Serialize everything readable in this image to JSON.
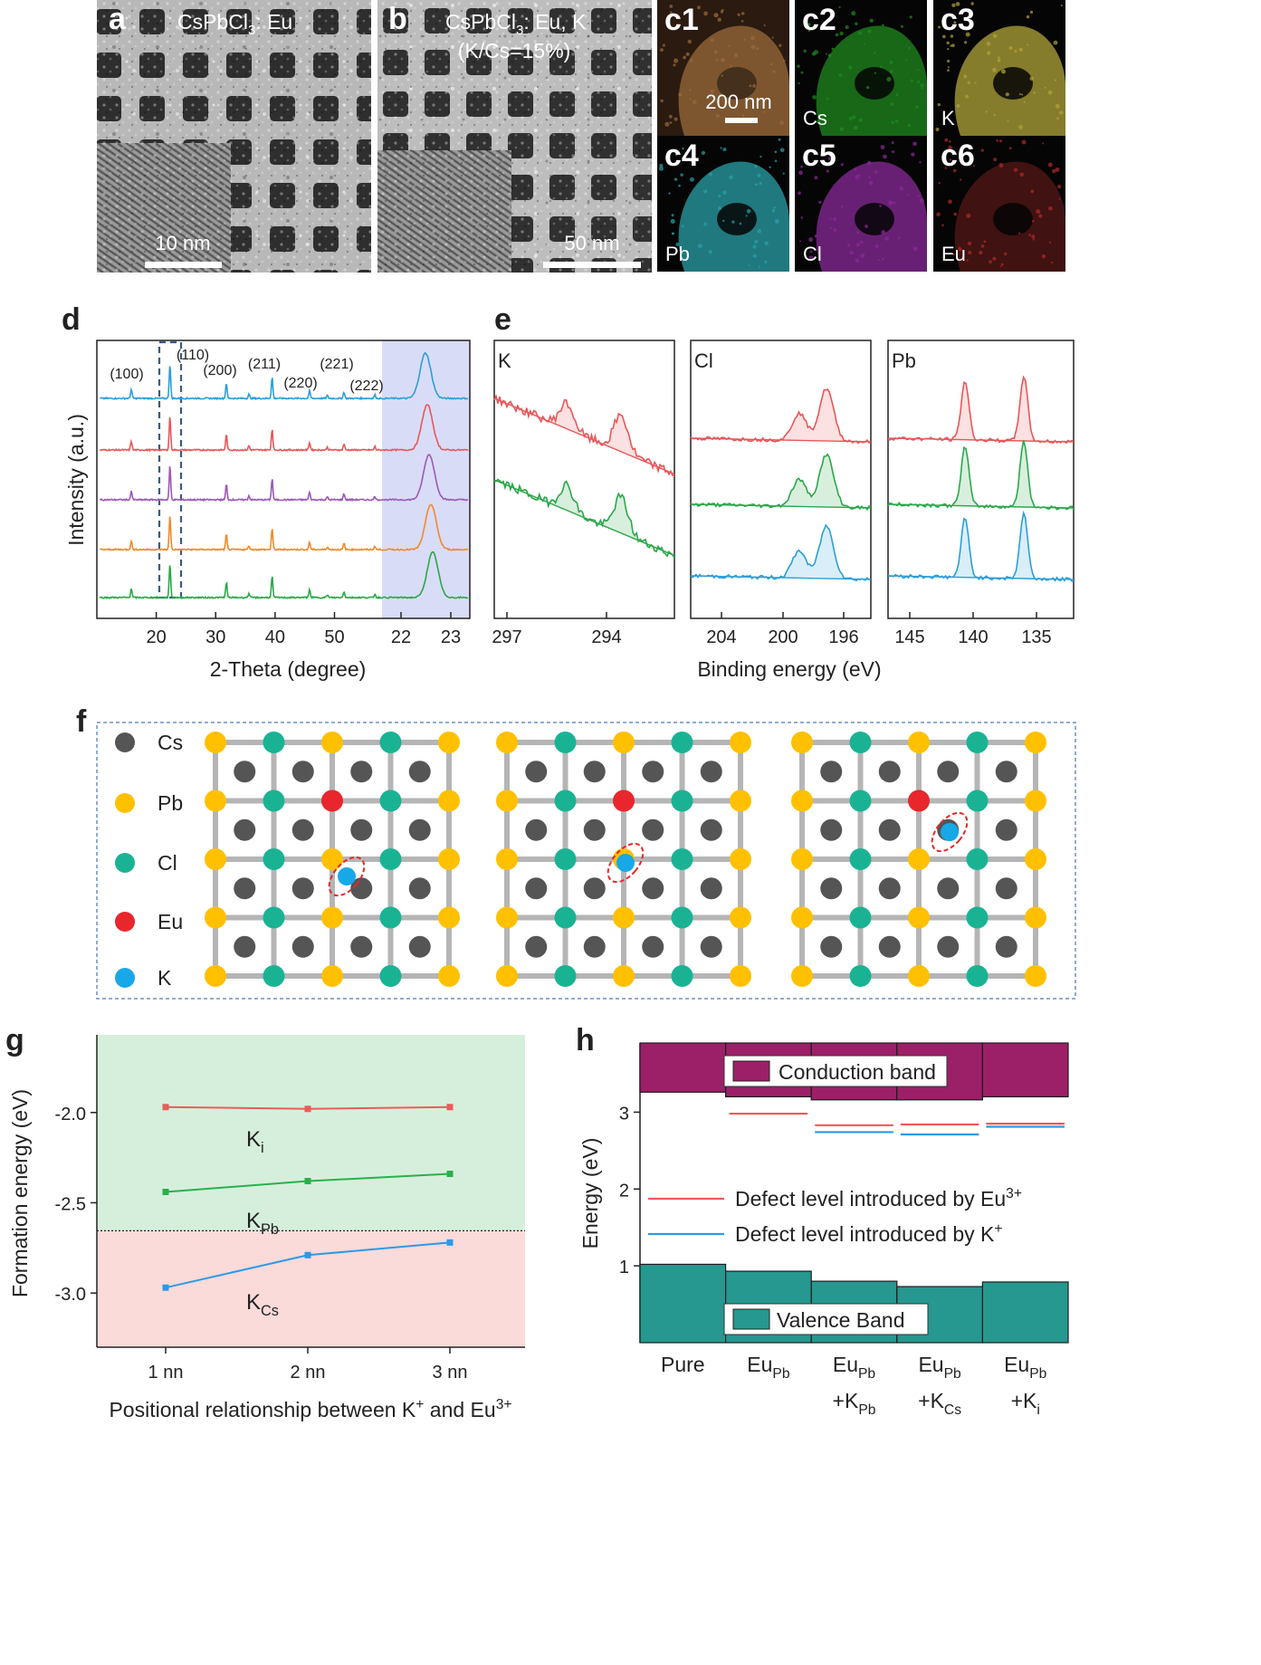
{
  "panel_a": {
    "label": "a",
    "title_main": "CsPbCl",
    "title_sub": "3",
    "title_tail": ": Eu",
    "scale": "10 nm"
  },
  "panel_b": {
    "label": "b",
    "title_main": "CsPbCl",
    "title_sub": "3",
    "title_tail": ": Eu, K",
    "title2": "(K/Cs=15%)",
    "scale": "50 nm"
  },
  "panel_c": {
    "tiles": [
      {
        "label": "c1",
        "element": "",
        "scale": "200 nm",
        "color": "#9a6a3a"
      },
      {
        "label": "c2",
        "element": "Cs",
        "color": "#1f8a1f"
      },
      {
        "label": "c3",
        "element": "K",
        "color": "#b0a43a"
      },
      {
        "label": "c4",
        "element": "Pb",
        "color": "#2aa0a8"
      },
      {
        "label": "c5",
        "element": "Cl",
        "color": "#8a2a9a"
      },
      {
        "label": "c6",
        "element": "Eu",
        "color": "#b02a2a"
      }
    ]
  },
  "panel_d": {
    "label": "d",
    "ylabel": "Intensity (a.u.)",
    "xlabel": "2-Theta (degree)",
    "xticks": [
      "20",
      "30",
      "40",
      "50"
    ],
    "zoom_ticks": [
      "22",
      "23"
    ],
    "peaks": [
      "(100)",
      "(110)",
      "(200)",
      "(211)",
      "(220)",
      "(221)",
      "(222)"
    ],
    "colors": [
      "#2a9fd8",
      "#e8575a",
      "#9b59b6",
      "#f08a2a",
      "#2aa84a"
    ]
  },
  "panel_e": {
    "label": "e",
    "xlabel": "Binding energy (eV)",
    "subpanels": [
      {
        "element": "K",
        "ticks": [
          "297",
          "294"
        ]
      },
      {
        "element": "Cl",
        "ticks": [
          "204",
          "200",
          "196"
        ]
      },
      {
        "element": "Pb",
        "ticks": [
          "145",
          "140",
          "135"
        ]
      }
    ]
  },
  "panel_f": {
    "label": "f",
    "legend": [
      {
        "name": "Cs",
        "color": "#555555"
      },
      {
        "name": "Pb",
        "color": "#ffc000"
      },
      {
        "name": "Cl",
        "color": "#19b394"
      },
      {
        "name": "Eu",
        "color": "#e8262c"
      },
      {
        "name": "K",
        "color": "#18a8e8"
      }
    ]
  },
  "panel_g": {
    "label": "g",
    "chart_data": {
      "type": "line",
      "categories": [
        "1 nn",
        "2 nn",
        "3 nn"
      ],
      "series": [
        {
          "name": "Ki",
          "label_main": "K",
          "label_sub": "i",
          "values": [
            -1.97,
            -1.98,
            -1.97
          ],
          "color": "#ee5a5a"
        },
        {
          "name": "KPb",
          "label_main": "K",
          "label_sub": "Pb",
          "values": [
            -2.44,
            -2.38,
            -2.34
          ],
          "color": "#2ab04a"
        },
        {
          "name": "KCs",
          "label_main": "K",
          "label_sub": "Cs",
          "values": [
            -2.97,
            -2.79,
            -2.72
          ],
          "color": "#2a9ae8"
        }
      ],
      "ylim": [
        -3.3,
        -1.57
      ],
      "yticks": [
        "-2.0",
        "-2.5",
        "-3.0"
      ],
      "threshold": -2.655,
      "ylabel": "Formation energy (eV)",
      "xlabel_main": "Positional relationship between K",
      "xlabel_sup1": "+",
      "xlabel_mid": " and Eu",
      "xlabel_sup2": "3+"
    }
  },
  "panel_h": {
    "label": "h",
    "chart_data": {
      "type": "bar",
      "ylabel": "Energy (eV)",
      "yticks": [
        "1",
        "2",
        "3"
      ],
      "ylim": [
        0,
        3.9
      ],
      "categories": [
        "Pure",
        "EuPb",
        "EuPb+KPb",
        "EuPb+KCs",
        "EuPb+Ki"
      ],
      "cat_labels": [
        {
          "l1_main": "Pure",
          "l1_sub": "",
          "l2_main": "",
          "l2_sub": ""
        },
        {
          "l1_main": "Eu",
          "l1_sub": "Pb",
          "l2_main": "",
          "l2_sub": ""
        },
        {
          "l1_main": "Eu",
          "l1_sub": "Pb",
          "l2_main": "+K",
          "l2_sub": "Pb"
        },
        {
          "l1_main": "Eu",
          "l1_sub": "Pb",
          "l2_main": "+K",
          "l2_sub": "Cs"
        },
        {
          "l1_main": "Eu",
          "l1_sub": "Pb",
          "l2_main": "+K",
          "l2_sub": "i"
        }
      ],
      "valence_top": [
        1.02,
        0.93,
        0.8,
        0.73,
        0.79
      ],
      "conduction_bottom": [
        3.26,
        3.2,
        3.16,
        3.16,
        3.2
      ],
      "eu_level": [
        null,
        2.98,
        2.83,
        2.84,
        2.85
      ],
      "k_level": [
        null,
        null,
        2.74,
        2.71,
        2.81
      ],
      "legend_cb": "Conduction band",
      "legend_vb": "Valence Band",
      "legend_eu_main": "Defect level introduced by Eu",
      "legend_eu_sup": "3+",
      "legend_k_main": "Defect level introduced by K",
      "legend_k_sup": "+"
    }
  }
}
